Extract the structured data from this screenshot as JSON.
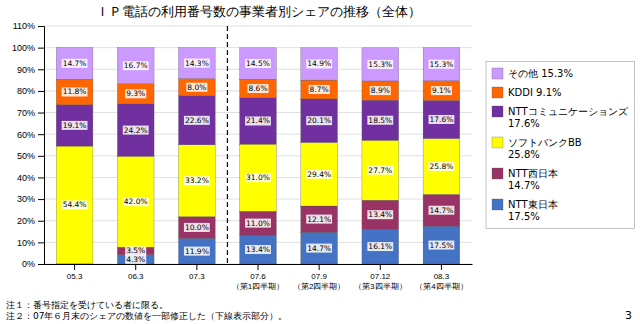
{
  "chart_data": {
    "type": "bar",
    "stacked": true,
    "title": "ＩＰ電話の利用番号数の事業者別シェアの推移（全体）",
    "categories": [
      "05.3",
      "06.3",
      "07.3",
      "07.6\n（第1四半期）",
      "07.9\n（第2四半期）",
      "07.12\n（第3四半期）",
      "08.3\n（第4四半期）"
    ],
    "series": [
      {
        "name": "NTT東日本\n17.5%",
        "color": "#4472C4",
        "values": [
          0.1,
          4.3,
          11.9,
          13.4,
          14.7,
          16.1,
          17.5
        ],
        "value_labels": [
          null,
          "4.3%",
          "11.9%",
          "13.4%",
          "14.7%",
          "16.1%",
          "17.5%"
        ]
      },
      {
        "name": "NTT西日本\n14.7%",
        "color": "#993366",
        "values": [
          0.0,
          3.5,
          10.0,
          11.0,
          12.1,
          13.4,
          14.7
        ],
        "value_labels": [
          null,
          "3.5%",
          "10.0%",
          "11.0%",
          "12.1%",
          "13.4%",
          "14.7%"
        ]
      },
      {
        "name": "ソフトバンクBB\n25.8%",
        "color": "#FFFF00",
        "values": [
          54.4,
          42.0,
          33.2,
          31.0,
          29.4,
          27.7,
          25.8
        ],
        "value_labels": [
          "54.4%",
          "42.0%",
          "33.2%",
          "31.0%",
          "29.4%",
          "27.7%",
          "25.8%"
        ]
      },
      {
        "name": "NTTコミュニケーションズ\n17.6%",
        "color": "#7030A0",
        "values": [
          19.1,
          24.2,
          22.6,
          21.4,
          20.1,
          18.5,
          17.6
        ],
        "value_labels": [
          "19.1%",
          "24.2%",
          "22.6%",
          "21.4%",
          "20.1%",
          "18.5%",
          "17.6%"
        ]
      },
      {
        "name": "KDDI 9.1%",
        "color": "#FF6600",
        "values": [
          11.8,
          9.3,
          8.0,
          8.6,
          8.7,
          8.9,
          9.1
        ],
        "value_labels": [
          "11.8%",
          "9.3%",
          "8.0%",
          "8.6%",
          "8.7%",
          "8.9%",
          "9.1%"
        ]
      },
      {
        "name": "その他 15.3%",
        "color": "#CC99FF",
        "values": [
          14.7,
          16.7,
          14.3,
          14.5,
          14.9,
          15.3,
          15.3
        ],
        "value_labels": [
          "14.7%",
          "16.7%",
          "14.3%",
          "14.5%",
          "14.9%",
          "15.3%",
          "15.3%"
        ]
      }
    ],
    "ylim": [
      0,
      110
    ],
    "yticks": [
      {
        "value": 0,
        "label": "0%"
      },
      {
        "value": 10,
        "label": "10%"
      },
      {
        "value": 20,
        "label": "20%"
      },
      {
        "value": 30,
        "label": "30%"
      },
      {
        "value": 40,
        "label": "40%"
      },
      {
        "value": 50,
        "label": "50%"
      },
      {
        "value": 60,
        "label": "60%"
      },
      {
        "value": 70,
        "label": "70%"
      },
      {
        "value": 80,
        "label": "80%"
      },
      {
        "value": 90,
        "label": "90%"
      },
      {
        "value": 100,
        "label": "100%"
      },
      {
        "value": 110,
        "label": "110%"
      }
    ],
    "grid": true,
    "legend": "right",
    "data_labels": true,
    "annotations": [
      {
        "text": "注１：番号指定を受けている者に限る。"
      },
      {
        "text": "注２：07年６月末のシェアの数値を一部修正した（下線表示部分）。"
      },
      {
        "text": "3"
      },
      {
        "type": "vline",
        "x": 2.5,
        "line_style": "dashed"
      }
    ]
  }
}
